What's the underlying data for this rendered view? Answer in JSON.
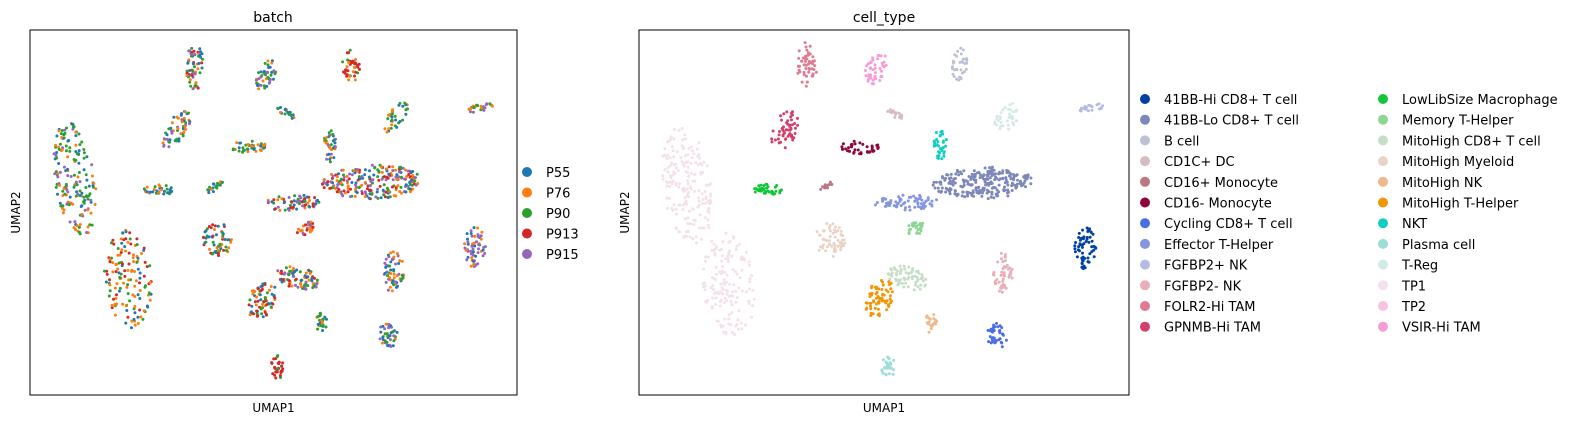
{
  "chart_data": [
    {
      "type": "scatter",
      "title": "batch",
      "xlabel": "UMAP1",
      "ylabel": "UMAP2",
      "grid": false,
      "ticks": false,
      "legend_placement": "right",
      "series": [
        {
          "name": "P55",
          "color": "#1f77b4"
        },
        {
          "name": "P76",
          "color": "#ff7f0e"
        },
        {
          "name": "P90",
          "color": "#2ca02c"
        },
        {
          "name": "P913",
          "color": "#d62728"
        },
        {
          "name": "P915",
          "color": "#9467bd"
        }
      ]
    },
    {
      "type": "scatter",
      "title": "cell_type",
      "xlabel": "UMAP1",
      "ylabel": "UMAP2",
      "grid": false,
      "ticks": false,
      "legend_placement": "right",
      "series": [
        {
          "name": "41BB-Hi CD8+ T cell",
          "color": "#023fa5"
        },
        {
          "name": "41BB-Lo CD8+ T cell",
          "color": "#7d87b9"
        },
        {
          "name": "B cell",
          "color": "#bec1d4"
        },
        {
          "name": "CD1C+ DC",
          "color": "#d6bcc0"
        },
        {
          "name": "CD16+ Monocyte",
          "color": "#bb7784"
        },
        {
          "name": "CD16- Monocyte",
          "color": "#8e063b"
        },
        {
          "name": "Cycling CD8+ T cell",
          "color": "#4a6fe3"
        },
        {
          "name": "Effector T-Helper",
          "color": "#8595e1"
        },
        {
          "name": "FGFBP2+ NK",
          "color": "#b5bbe3"
        },
        {
          "name": "FGFBP2- NK",
          "color": "#e6afb9"
        },
        {
          "name": "FOLR2-Hi TAM",
          "color": "#e07b91"
        },
        {
          "name": "GPNMB-Hi TAM",
          "color": "#d33f6a"
        },
        {
          "name": "LowLibSize Macrophage",
          "color": "#11c638"
        },
        {
          "name": "Memory T-Helper",
          "color": "#8dd593"
        },
        {
          "name": "MitoHigh CD8+ T cell",
          "color": "#c6dec7"
        },
        {
          "name": "MitoHigh Myeloid",
          "color": "#ead3c6"
        },
        {
          "name": "MitoHigh NK",
          "color": "#f0b98d"
        },
        {
          "name": "MitoHigh T-Helper",
          "color": "#ef9708"
        },
        {
          "name": "NKT",
          "color": "#0fcfc0"
        },
        {
          "name": "Plasma cell",
          "color": "#9cded6"
        },
        {
          "name": "T-Reg",
          "color": "#d5eae7"
        },
        {
          "name": "TP1",
          "color": "#f3e1eb"
        },
        {
          "name": "TP2",
          "color": "#f6c4e1"
        },
        {
          "name": "VSIR-Hi TAM",
          "color": "#f79cd4"
        }
      ]
    }
  ]
}
